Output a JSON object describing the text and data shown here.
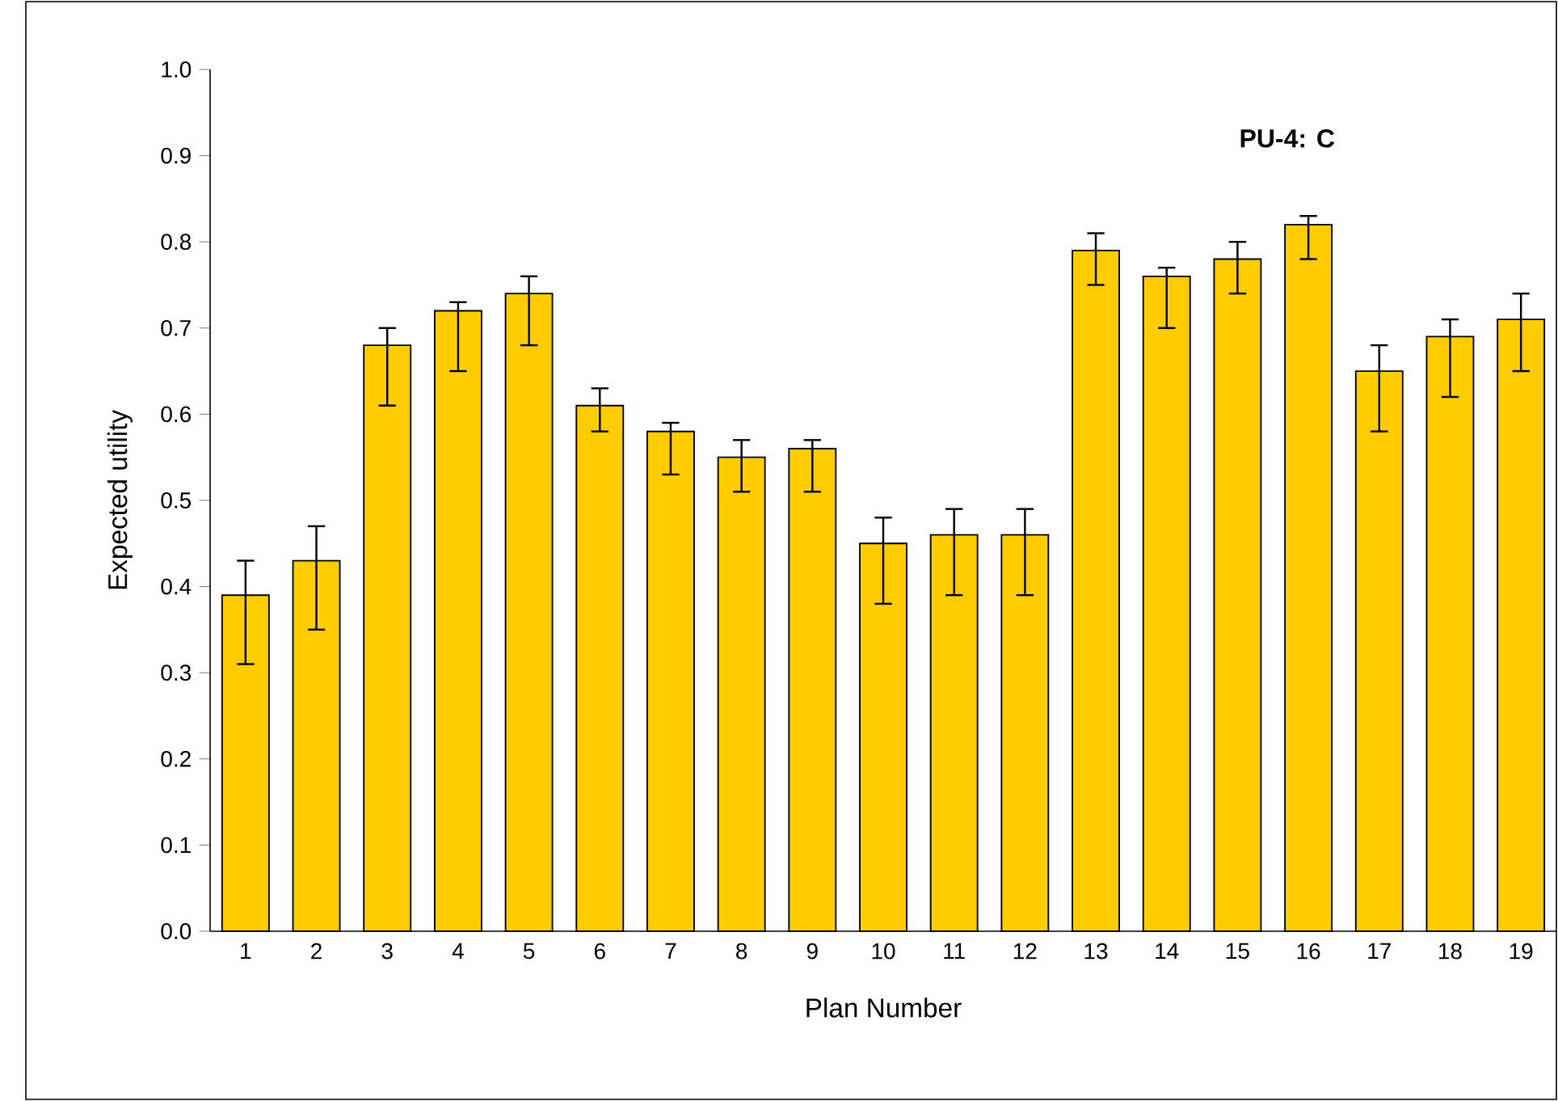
{
  "chart_data": {
    "type": "bar",
    "xlabel": "Plan Number",
    "ylabel": "Expected utility",
    "annotations": [
      "PU-4: C"
    ],
    "categories": [
      "1",
      "2",
      "3",
      "4",
      "5",
      "6",
      "7",
      "8",
      "9",
      "10",
      "11",
      "12",
      "13",
      "14",
      "15",
      "16",
      "17",
      "18",
      "19"
    ],
    "values": [
      0.39,
      0.43,
      0.68,
      0.72,
      0.74,
      0.61,
      0.58,
      0.55,
      0.56,
      0.45,
      0.46,
      0.46,
      0.79,
      0.76,
      0.78,
      0.82,
      0.65,
      0.69,
      0.71
    ],
    "errors": [
      [
        0.31,
        0.43
      ],
      [
        0.35,
        0.47
      ],
      [
        0.61,
        0.7
      ],
      [
        0.65,
        0.73
      ],
      [
        0.68,
        0.76
      ],
      [
        0.58,
        0.63
      ],
      [
        0.53,
        0.59
      ],
      [
        0.51,
        0.57
      ],
      [
        0.51,
        0.57
      ],
      [
        0.38,
        0.48
      ],
      [
        0.39,
        0.49
      ],
      [
        0.39,
        0.49
      ],
      [
        0.75,
        0.81
      ],
      [
        0.7,
        0.77
      ],
      [
        0.74,
        0.8
      ],
      [
        0.78,
        0.83
      ],
      [
        0.58,
        0.68
      ],
      [
        0.62,
        0.71
      ],
      [
        0.65,
        0.74
      ]
    ],
    "color": "#ffcc00",
    "ylim": [
      0,
      1
    ],
    "yticks": [
      {
        "value": 0,
        "label": "0.0"
      },
      {
        "value": 0.1,
        "label": "0.1"
      },
      {
        "value": 0.2,
        "label": "0.2"
      },
      {
        "value": 0.3,
        "label": "0.3"
      },
      {
        "value": 0.4,
        "label": "0.4"
      },
      {
        "value": 0.5,
        "label": "0.5"
      },
      {
        "value": 0.6,
        "label": "0.6"
      },
      {
        "value": 0.7,
        "label": "0.7"
      },
      {
        "value": 0.8,
        "label": "0.8"
      },
      {
        "value": 0.9,
        "label": "0.9"
      },
      {
        "value": 1,
        "label": "1.0"
      }
    ],
    "grid": false
  }
}
